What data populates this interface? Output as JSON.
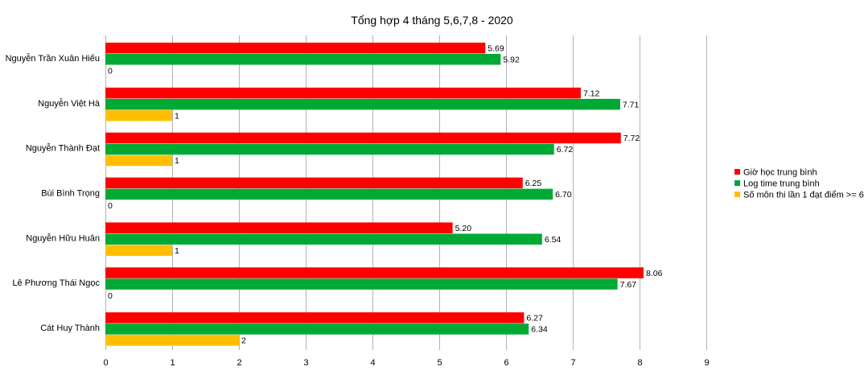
{
  "chart_data": {
    "type": "bar",
    "orientation": "horizontal",
    "title": "Tổng hợp 4 tháng 5,6,7,8 - 2020",
    "categories": [
      "Nguyễn Trần Xuân Hiếu",
      "Nguyễn Việt Hà",
      "Nguyễn Thành Đạt",
      "Bùi Bình Trọng",
      "Nguyễn Hữu Huân",
      "Lê Phương Thái Ngọc",
      "Cát Huy Thành"
    ],
    "series": [
      {
        "name": "Giờ học trung bình",
        "color": "#ff0000",
        "values": [
          5.69,
          7.12,
          7.72,
          6.25,
          5.2,
          8.06,
          6.27
        ],
        "labels": [
          "5.69",
          "7.12",
          "7.72",
          "6.25",
          "5.20",
          "8.06",
          "6.27"
        ]
      },
      {
        "name": "Log time trung bình",
        "color": "#00a933",
        "values": [
          5.92,
          7.71,
          6.72,
          6.7,
          6.54,
          7.67,
          6.34
        ],
        "labels": [
          "5.92",
          "7.71",
          "6.72",
          "6.70",
          "6.54",
          "7.67",
          "6.34"
        ]
      },
      {
        "name": "Số môn thi lần 1 đạt điểm >= 6",
        "color": "#ffbf00",
        "values": [
          0,
          1,
          1,
          0,
          1,
          0,
          2
        ],
        "labels": [
          "0",
          "1",
          "1",
          "0",
          "1",
          "0",
          "2"
        ]
      }
    ],
    "xlim": [
      0,
      9
    ],
    "x_ticks": [
      "0",
      "1",
      "2",
      "3",
      "4",
      "5",
      "6",
      "7",
      "8",
      "9"
    ],
    "grid": true,
    "legend_position": "right"
  }
}
